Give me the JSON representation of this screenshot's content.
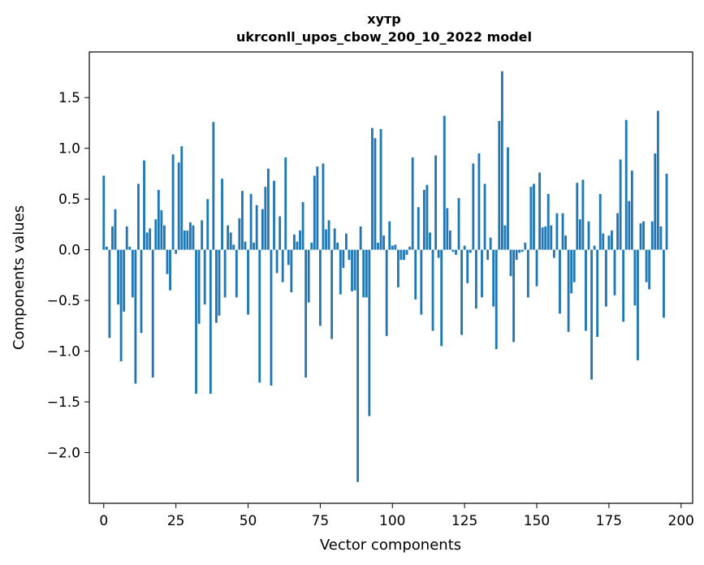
{
  "chart_data": {
    "type": "bar",
    "title": "хутр",
    "subtitle": "ukrconll_upos_cbow_200_10_2022 model",
    "xlabel": "Vector components",
    "ylabel": "Components values",
    "xlim": [
      -5,
      204
    ],
    "ylim": [
      -2.5,
      1.95
    ],
    "xticks": [
      0,
      25,
      50,
      75,
      100,
      125,
      150,
      175,
      200
    ],
    "yticks": [
      -2.0,
      -1.5,
      -1.0,
      -0.5,
      0.0,
      0.5,
      1.0,
      1.5
    ],
    "grid": false,
    "legend": "none",
    "bar_color": "#1f77b4",
    "values": [
      0.73,
      0.03,
      -0.87,
      0.23,
      0.4,
      -0.54,
      -1.1,
      -0.61,
      0.23,
      0.03,
      -0.47,
      -1.32,
      0.65,
      -0.82,
      0.88,
      0.17,
      0.21,
      -1.26,
      0.3,
      0.59,
      0.39,
      0.24,
      -0.24,
      -0.4,
      0.94,
      -0.04,
      0.86,
      1.02,
      0.19,
      0.19,
      0.27,
      0.24,
      -1.42,
      -0.73,
      0.29,
      -0.54,
      0.5,
      -1.42,
      1.26,
      -0.72,
      -0.65,
      0.7,
      -0.47,
      0.24,
      0.17,
      0.05,
      -0.47,
      0.31,
      0.58,
      0.08,
      -0.64,
      0.55,
      0.07,
      0.44,
      -1.31,
      0.4,
      0.62,
      0.8,
      -1.34,
      0.68,
      -0.23,
      0.33,
      -0.32,
      0.91,
      -0.15,
      -0.42,
      0.15,
      0.08,
      0.19,
      0.47,
      -1.26,
      -0.52,
      0.07,
      0.73,
      0.82,
      -0.75,
      0.85,
      0.2,
      0.29,
      -0.88,
      0.21,
      0.07,
      -0.44,
      -0.18,
      0.16,
      -0.1,
      -0.41,
      -0.4,
      -2.29,
      0.23,
      -0.47,
      -0.47,
      -1.64,
      1.2,
      1.1,
      0.07,
      1.19,
      0.14,
      -0.85,
      0.28,
      0.04,
      0.05,
      -0.37,
      -0.1,
      -0.1,
      -0.05,
      0.03,
      0.91,
      -0.49,
      0.42,
      -0.64,
      0.59,
      0.64,
      0.17,
      -0.8,
      0.93,
      -0.08,
      -0.95,
      1.32,
      0.41,
      0.19,
      -0.02,
      -0.05,
      0.51,
      -0.84,
      0.04,
      -0.33,
      -0.03,
      0.85,
      -0.58,
      0.95,
      -0.47,
      0.65,
      -0.1,
      0.12,
      -0.56,
      -0.98,
      1.27,
      1.76,
      0.24,
      1.01,
      -0.26,
      -0.91,
      -0.1,
      -0.03,
      -0.02,
      0.07,
      -0.47,
      0.62,
      0.65,
      -0.36,
      0.76,
      0.22,
      0.23,
      0.55,
      0.24,
      -0.08,
      0.36,
      -0.63,
      0.36,
      0.14,
      -0.81,
      -0.43,
      -0.32,
      0.66,
      0.3,
      0.69,
      -0.8,
      0.28,
      -1.28,
      0.04,
      -0.86,
      0.55,
      0.16,
      -0.56,
      0.14,
      0.19,
      -0.45,
      0.36,
      0.89,
      -0.71,
      1.28,
      0.48,
      0.78,
      -0.55,
      -1.09,
      0.26,
      0.28,
      -0.32,
      -0.39,
      0.28,
      0.95,
      1.37,
      0.23,
      -0.67,
      0.75
    ]
  }
}
